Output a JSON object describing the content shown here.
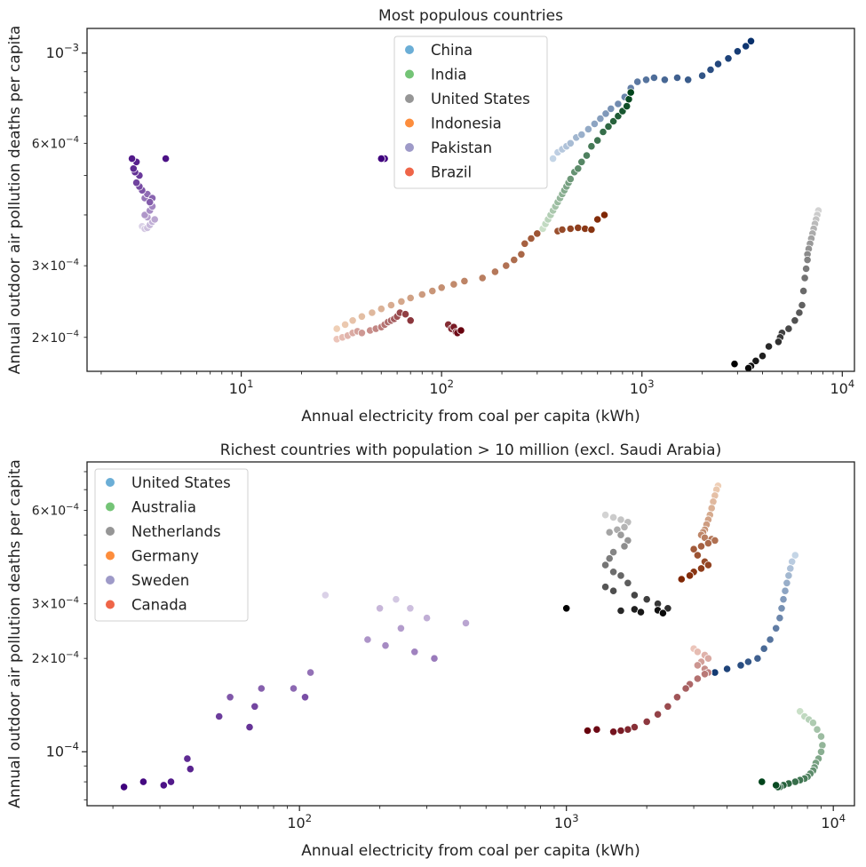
{
  "chart_data": [
    {
      "type": "scatter",
      "title": "Most populous countries",
      "xlabel": "Annual electricity from coal per capita (kWh)",
      "ylabel": "Annual outdoor air pollution deaths per capita",
      "xscale": "log",
      "yscale": "log",
      "xlim": [
        1.7,
        11500
      ],
      "ylim": [
        0.000165,
        0.00115
      ],
      "x_major_ticks": [
        {
          "value": 10,
          "base": "10",
          "exp": "1"
        },
        {
          "value": 100,
          "base": "10",
          "exp": "2"
        },
        {
          "value": 1000,
          "base": "10",
          "exp": "3"
        },
        {
          "value": 10000,
          "base": "10",
          "exp": "4"
        }
      ],
      "y_labeled_ticks": [
        {
          "value": 0.0002,
          "mant": "2×10",
          "exp": "−4"
        },
        {
          "value": 0.0003,
          "mant": "3×10",
          "exp": "−4"
        },
        {
          "value": 0.0006,
          "mant": "6×10",
          "exp": "−4"
        },
        {
          "value": 0.001,
          "mant": "10",
          "exp": "−3"
        }
      ],
      "legend_position": "top-center",
      "series": [
        {
          "name": "China",
          "legend_color": "#6baed6",
          "colors": [
            "#deebf7",
            "#08306b"
          ],
          "x": [
            360,
            380,
            400,
            420,
            440,
            470,
            500,
            540,
            580,
            620,
            660,
            700,
            760,
            820,
            880,
            950,
            1050,
            1150,
            1300,
            1500,
            1700,
            2000,
            2200,
            2400,
            2700,
            3000,
            3300,
            3500
          ],
          "y": [
            0.00055,
            0.00057,
            0.00058,
            0.00059,
            0.0006,
            0.00062,
            0.00063,
            0.00065,
            0.00067,
            0.00069,
            0.00071,
            0.00073,
            0.00075,
            0.00078,
            0.00082,
            0.00085,
            0.00086,
            0.00087,
            0.00086,
            0.00087,
            0.00086,
            0.00088,
            0.00091,
            0.00094,
            0.00097,
            0.00101,
            0.00104,
            0.00107
          ]
        },
        {
          "name": "India",
          "legend_color": "#74c476",
          "colors": [
            "#e5f5e0",
            "#00441b"
          ],
          "x": [
            320,
            330,
            340,
            350,
            360,
            370,
            380,
            390,
            400,
            410,
            420,
            430,
            440,
            460,
            480,
            500,
            530,
            560,
            600,
            640,
            680,
            720,
            760,
            800,
            840,
            860,
            880
          ],
          "y": [
            0.00037,
            0.00038,
            0.00039,
            0.0004,
            0.00041,
            0.00042,
            0.00043,
            0.00044,
            0.00045,
            0.00046,
            0.00047,
            0.00048,
            0.00049,
            0.00051,
            0.00052,
            0.00054,
            0.00056,
            0.00059,
            0.00061,
            0.00064,
            0.00066,
            0.00068,
            0.0007,
            0.00072,
            0.00074,
            0.00077,
            0.0008
          ]
        },
        {
          "name": "United States",
          "legend_color": "#969696",
          "colors": [
            "#f0f0f0",
            "#000000"
          ],
          "x": [
            7600,
            7500,
            7400,
            7300,
            7200,
            7100,
            7000,
            6900,
            6800,
            6700,
            6700,
            6600,
            6500,
            6400,
            6300,
            6100,
            5800,
            5400,
            5000,
            4900,
            4800,
            4300,
            4000,
            3700,
            3500,
            3400,
            2900
          ],
          "y": [
            0.00041,
            0.0004,
            0.00039,
            0.00038,
            0.00037,
            0.00036,
            0.00035,
            0.00034,
            0.00033,
            0.00032,
            0.00031,
            0.000295,
            0.00028,
            0.00026,
            0.00024,
            0.00023,
            0.00022,
            0.00021,
            0.000205,
            0.0002,
            0.000195,
            0.00019,
            0.00018,
            0.000175,
            0.00017,
            0.000168,
            0.000172
          ]
        },
        {
          "name": "Indonesia",
          "legend_color": "#fd8d3c",
          "colors": [
            "#fee6ce",
            "#7f2704"
          ],
          "x": [
            30,
            33,
            36,
            40,
            45,
            50,
            56,
            63,
            70,
            80,
            90,
            100,
            115,
            130,
            160,
            185,
            210,
            230,
            250,
            260,
            280,
            300,
            380,
            400,
            440,
            480,
            520,
            560,
            600,
            650
          ],
          "y": [
            0.00021,
            0.000215,
            0.00022,
            0.000225,
            0.00023,
            0.000235,
            0.00024,
            0.000245,
            0.00025,
            0.000255,
            0.00026,
            0.000265,
            0.00027,
            0.000275,
            0.00028,
            0.00029,
            0.0003,
            0.00031,
            0.00032,
            0.00034,
            0.00035,
            0.00036,
            0.000365,
            0.000368,
            0.00037,
            0.000372,
            0.00037,
            0.000368,
            0.00039,
            0.0004
          ]
        },
        {
          "name": "Pakistan",
          "legend_color": "#9e9ac8",
          "colors": [
            "#efedf5",
            "#3f007d"
          ],
          "x": [
            3.2,
            3.3,
            3.4,
            3.5,
            3.6,
            3.7,
            3.4,
            3.3,
            3.5,
            3.6,
            3.5,
            3.3,
            3.4,
            3.6,
            3.5,
            3.2,
            3.1,
            3.0,
            3.1,
            2.95,
            2.9,
            3.0,
            2.85,
            4.2,
            52,
            50
          ],
          "y": [
            0.000375,
            0.00037,
            0.000372,
            0.000378,
            0.000385,
            0.00039,
            0.000395,
            0.0004,
            0.00041,
            0.00042,
            0.00043,
            0.00044,
            0.00045,
            0.00044,
            0.00043,
            0.00046,
            0.00047,
            0.00048,
            0.0005,
            0.00051,
            0.00052,
            0.00054,
            0.00055,
            0.00055,
            0.00055,
            0.00055
          ]
        },
        {
          "name": "Brazil",
          "legend_color": "#ef6548",
          "colors": [
            "#fee0d2",
            "#67000d"
          ],
          "x": [
            30,
            32,
            34,
            36,
            38,
            40,
            44,
            47,
            50,
            52,
            54,
            56,
            58,
            60,
            62,
            66,
            70,
            108,
            112,
            115,
            118,
            120,
            125
          ],
          "y": [
            0.000198,
            0.0002,
            0.000202,
            0.000205,
            0.000207,
            0.000205,
            0.000208,
            0.00021,
            0.000212,
            0.000215,
            0.000218,
            0.00022,
            0.000222,
            0.000225,
            0.00023,
            0.000228,
            0.00022,
            0.000215,
            0.00021,
            0.000212,
            0.000206,
            0.000205,
            0.000208
          ]
        }
      ]
    },
    {
      "type": "scatter",
      "title": "Richest countries with population > 10 million (excl. Saudi Arabia)",
      "xlabel": "Annual electricity from coal per capita (kWh)",
      "ylabel": "Annual outdoor air pollution deaths per capita",
      "xscale": "log",
      "yscale": "log",
      "xlim": [
        16,
        12000
      ],
      "ylim": 0,
      "ylim_values": [
        6.7e-05,
        0.00086
      ],
      "x_major_ticks": [
        {
          "value": 100,
          "base": "10",
          "exp": "2"
        },
        {
          "value": 1000,
          "base": "10",
          "exp": "3"
        },
        {
          "value": 10000,
          "base": "10",
          "exp": "4"
        }
      ],
      "y_labeled_ticks": [
        {
          "value": 0.0001,
          "mant": "10",
          "exp": "−4"
        },
        {
          "value": 0.0002,
          "mant": "2×10",
          "exp": "−4"
        },
        {
          "value": 0.0003,
          "mant": "3×10",
          "exp": "−4"
        },
        {
          "value": 0.0006,
          "mant": "6×10",
          "exp": "−4"
        }
      ],
      "legend_position": "top-left",
      "series": [
        {
          "name": "United States",
          "legend_color": "#6baed6",
          "colors": [
            "#deebf7",
            "#08306b"
          ],
          "x": [
            7200,
            7000,
            6900,
            6800,
            6700,
            6600,
            6500,
            6400,
            6300,
            6100,
            5800,
            5500,
            5200,
            4800,
            4500,
            4000,
            3600,
            3400
          ],
          "y": [
            0.00043,
            0.00041,
            0.00039,
            0.00037,
            0.00035,
            0.00033,
            0.00031,
            0.00029,
            0.00027,
            0.00025,
            0.00023,
            0.000215,
            0.0002,
            0.000195,
            0.00019,
            0.000185,
            0.00018,
            0.00018
          ]
        },
        {
          "name": "Australia",
          "legend_color": "#74c476",
          "colors": [
            "#e5f5e0",
            "#00441b"
          ],
          "x": [
            7500,
            7800,
            8100,
            8400,
            8700,
            9000,
            9100,
            9000,
            8800,
            8600,
            8500,
            8400,
            8200,
            8000,
            7800,
            7500,
            7200,
            6800,
            6500,
            6300,
            6200,
            6100,
            5400
          ],
          "y": [
            0.000135,
            0.00013,
            0.000127,
            0.000124,
            0.000118,
            0.000112,
            0.000105,
            0.0001,
            9.5e-05,
            9.2e-05,
            8.9e-05,
            8.7e-05,
            8.5e-05,
            8.3e-05,
            8.2e-05,
            8.1e-05,
            8e-05,
            7.9e-05,
            7.8e-05,
            7.7e-05,
            7.7e-05,
            7.8e-05,
            8e-05
          ]
        },
        {
          "name": "Netherlands",
          "legend_color": "#969696",
          "colors": [
            "#f0f0f0",
            "#000000"
          ],
          "x": [
            1400,
            1500,
            1600,
            1700,
            1650,
            1550,
            1450,
            1600,
            1700,
            1650,
            1500,
            1450,
            1400,
            1500,
            1600,
            1700,
            1400,
            1500,
            1800,
            2000,
            2200,
            2400,
            1600,
            1800,
            1900,
            2200,
            2300,
            1000
          ],
          "y": [
            0.00058,
            0.00057,
            0.00056,
            0.00055,
            0.00053,
            0.00052,
            0.00051,
            0.0005,
            0.00048,
            0.00046,
            0.00044,
            0.00042,
            0.0004,
            0.00038,
            0.00037,
            0.00035,
            0.00034,
            0.00033,
            0.00032,
            0.00031,
            0.0003,
            0.00029,
            0.000285,
            0.000288,
            0.000282,
            0.000286,
            0.00028,
            0.00029
          ]
        },
        {
          "name": "Germany",
          "legend_color": "#fd8d3c",
          "colors": [
            "#fee6ce",
            "#7f2704"
          ],
          "x": [
            3700,
            3650,
            3600,
            3550,
            3500,
            3450,
            3400,
            3350,
            3300,
            3250,
            3200,
            3300,
            3500,
            3600,
            3400,
            3200,
            3000,
            3100,
            3300,
            3400,
            3200,
            3000,
            2900,
            2700
          ],
          "y": [
            0.00072,
            0.0007,
            0.00067,
            0.00064,
            0.00061,
            0.00058,
            0.00056,
            0.00054,
            0.00052,
            0.00051,
            0.0005,
            0.00049,
            0.000485,
            0.00048,
            0.00047,
            0.00046,
            0.00045,
            0.00043,
            0.00041,
            0.0004,
            0.00039,
            0.00038,
            0.00037,
            0.00036
          ]
        },
        {
          "name": "Sweden",
          "legend_color": "#9e9ac8",
          "colors": [
            "#efedf5",
            "#3f007d"
          ],
          "x": [
            125,
            230,
            260,
            200,
            300,
            420,
            240,
            180,
            210,
            270,
            320,
            110,
            95,
            72,
            55,
            105,
            68,
            50,
            65,
            38,
            39,
            33,
            31,
            26,
            22
          ],
          "y": [
            0.00032,
            0.00031,
            0.00029,
            0.00029,
            0.00027,
            0.00026,
            0.00025,
            0.00023,
            0.00022,
            0.00021,
            0.0002,
            0.00018,
            0.00016,
            0.00016,
            0.00015,
            0.00015,
            0.00014,
            0.00013,
            0.00012,
            9.5e-05,
            8.8e-05,
            8e-05,
            7.8e-05,
            8e-05,
            7.7e-05
          ]
        },
        {
          "name": "Canada",
          "legend_color": "#ef6548",
          "colors": [
            "#fee0d2",
            "#67000d"
          ],
          "x": [
            3000,
            3100,
            3300,
            3400,
            3200,
            3100,
            3300,
            3400,
            3300,
            3100,
            2900,
            2800,
            2600,
            2400,
            2200,
            2000,
            1800,
            1700,
            1600,
            1500,
            1300,
            1200
          ],
          "y": [
            0.000215,
            0.00021,
            0.000205,
            0.0002,
            0.000195,
            0.00019,
            0.000185,
            0.00018,
            0.000178,
            0.000172,
            0.000165,
            0.00016,
            0.00015,
            0.00014,
            0.000132,
            0.000125,
            0.00012,
            0.000118,
            0.000117,
            0.000116,
            0.000118,
            0.000117
          ]
        }
      ]
    }
  ]
}
